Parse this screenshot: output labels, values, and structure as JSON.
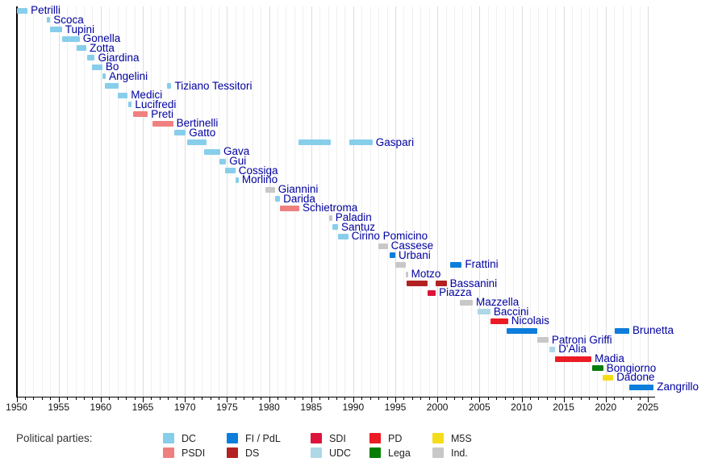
{
  "chart_data": {
    "type": "timeline",
    "description": "Gantt-style timeline of ministers, colored by political party",
    "x_axis": {
      "min": 1950,
      "max": 2025,
      "major_tick_step": 5,
      "minor_tick_step": 1,
      "tick_labels": [
        "1950",
        "1955",
        "1960",
        "1965",
        "1970",
        "1975",
        "1980",
        "1985",
        "1990",
        "1995",
        "2000",
        "2005",
        "2010",
        "2015",
        "2020",
        "2025"
      ],
      "grid": true
    },
    "party_colors": {
      "DC": "#87ceeb",
      "PSDI": "#f08080",
      "FI / PdL": "#0d7edb",
      "DS": "#b22222",
      "SDI": "#dc143c",
      "UDC": "#aed8e6",
      "PD": "#ec1b24",
      "Lega": "#067e06",
      "M5S": "#f5dc1a",
      "Ind.": "#c8c8c8"
    },
    "ministers": [
      {
        "name": "Petrilli",
        "terms": [
          {
            "start": 1950.0,
            "end": 1951.3,
            "party": "DC"
          }
        ]
      },
      {
        "name": "Scoca",
        "terms": [
          {
            "start": 1953.6,
            "end": 1954.0,
            "party": "DC"
          }
        ]
      },
      {
        "name": "Tupini",
        "terms": [
          {
            "start": 1954.0,
            "end": 1955.4,
            "party": "DC"
          }
        ]
      },
      {
        "name": "Gonella",
        "terms": [
          {
            "start": 1955.4,
            "end": 1957.5,
            "party": "DC"
          }
        ]
      },
      {
        "name": "Zotta",
        "terms": [
          {
            "start": 1957.1,
            "end": 1958.3,
            "party": "DC"
          }
        ]
      },
      {
        "name": "Giardina",
        "terms": [
          {
            "start": 1958.4,
            "end": 1959.3,
            "party": "DC"
          }
        ]
      },
      {
        "name": "Bo",
        "terms": [
          {
            "start": 1959.0,
            "end": 1960.2,
            "party": "DC"
          }
        ]
      },
      {
        "name": "Angelini",
        "terms": [
          {
            "start": 1960.2,
            "end": 1960.6,
            "party": "DC"
          }
        ]
      },
      {
        "name": "Tiziano Tessitori",
        "terms": [
          {
            "start": 1960.5,
            "end": 1962.1,
            "party": "DC"
          },
          {
            "start": 1967.9,
            "end": 1968.4,
            "party": "DC"
          }
        ]
      },
      {
        "name": "Medici",
        "terms": [
          {
            "start": 1962.0,
            "end": 1963.2,
            "party": "DC"
          }
        ]
      },
      {
        "name": "Lucifredi",
        "terms": [
          {
            "start": 1963.3,
            "end": 1963.7,
            "party": "DC"
          }
        ]
      },
      {
        "name": "Preti",
        "terms": [
          {
            "start": 1963.8,
            "end": 1965.6,
            "party": "PSDI"
          }
        ]
      },
      {
        "name": "Bertinelli",
        "terms": [
          {
            "start": 1966.1,
            "end": 1968.6,
            "party": "PSDI"
          }
        ]
      },
      {
        "name": "Gatto",
        "terms": [
          {
            "start": 1968.7,
            "end": 1970.1,
            "party": "DC"
          }
        ]
      },
      {
        "name": "Gaspari",
        "terms": [
          {
            "start": 1970.3,
            "end": 1972.6,
            "party": "DC"
          },
          {
            "start": 1983.5,
            "end": 1987.3,
            "party": "DC"
          },
          {
            "start": 1989.5,
            "end": 1992.3,
            "party": "DC"
          }
        ]
      },
      {
        "name": "Gava",
        "terms": [
          {
            "start": 1972.3,
            "end": 1974.2,
            "party": "DC"
          }
        ]
      },
      {
        "name": "Gui",
        "terms": [
          {
            "start": 1974.1,
            "end": 1974.9,
            "party": "DC"
          }
        ]
      },
      {
        "name": "Cossiga",
        "terms": [
          {
            "start": 1974.8,
            "end": 1976.0,
            "party": "DC"
          }
        ]
      },
      {
        "name": "Morlino",
        "terms": [
          {
            "start": 1976.0,
            "end": 1976.4,
            "party": "DC"
          }
        ]
      },
      {
        "name": "Giannini",
        "terms": [
          {
            "start": 1979.6,
            "end": 1980.7,
            "party": "Ind."
          }
        ]
      },
      {
        "name": "Darida",
        "terms": [
          {
            "start": 1980.7,
            "end": 1981.3,
            "party": "DC"
          }
        ]
      },
      {
        "name": "Schietroma",
        "terms": [
          {
            "start": 1981.3,
            "end": 1983.6,
            "party": "PSDI"
          }
        ]
      },
      {
        "name": "Paladin",
        "terms": [
          {
            "start": 1987.1,
            "end": 1987.5,
            "party": "Ind."
          }
        ]
      },
      {
        "name": "Santuz",
        "terms": [
          {
            "start": 1987.5,
            "end": 1988.2,
            "party": "DC"
          }
        ]
      },
      {
        "name": "Cirino Pomicino",
        "terms": [
          {
            "start": 1988.2,
            "end": 1989.4,
            "party": "DC"
          }
        ]
      },
      {
        "name": "Cassese",
        "terms": [
          {
            "start": 1993.0,
            "end": 1994.1,
            "party": "Ind."
          }
        ]
      },
      {
        "name": "Urbani",
        "terms": [
          {
            "start": 1994.3,
            "end": 1995.0,
            "party": "FI / PdL"
          }
        ]
      },
      {
        "name": "Frattini",
        "terms": [
          {
            "start": 1995.0,
            "end": 1996.2,
            "party": "Ind."
          },
          {
            "start": 2001.5,
            "end": 2002.9,
            "party": "FI / PdL"
          }
        ]
      },
      {
        "name": "Motzo",
        "terms": [
          {
            "start": 1996.2,
            "end": 1996.5,
            "party": "Ind."
          }
        ]
      },
      {
        "name": "Bassanini",
        "terms": [
          {
            "start": 1996.3,
            "end": 1998.8,
            "party": "DS"
          },
          {
            "start": 1999.8,
            "end": 2001.1,
            "party": "DS"
          }
        ]
      },
      {
        "name": "Piazza",
        "terms": [
          {
            "start": 1998.8,
            "end": 1999.8,
            "party": "SDI"
          }
        ]
      },
      {
        "name": "Mazzella",
        "terms": [
          {
            "start": 2002.7,
            "end": 2004.2,
            "party": "Ind."
          }
        ]
      },
      {
        "name": "Baccini",
        "terms": [
          {
            "start": 2004.8,
            "end": 2006.3,
            "party": "UDC"
          }
        ]
      },
      {
        "name": "Nicolais",
        "terms": [
          {
            "start": 2006.3,
            "end": 2008.4,
            "party": "PD"
          }
        ]
      },
      {
        "name": "Brunetta",
        "terms": [
          {
            "start": 2008.2,
            "end": 2011.9,
            "party": "FI / PdL"
          },
          {
            "start": 2021.1,
            "end": 2022.8,
            "party": "FI / PdL"
          }
        ]
      },
      {
        "name": "Patroni Griffi",
        "terms": [
          {
            "start": 2011.9,
            "end": 2013.2,
            "party": "Ind."
          }
        ]
      },
      {
        "name": "D'Alia",
        "terms": [
          {
            "start": 2013.3,
            "end": 2014.0,
            "party": "UDC"
          }
        ]
      },
      {
        "name": "Madia",
        "terms": [
          {
            "start": 2014.0,
            "end": 2018.3,
            "party": "PD"
          }
        ]
      },
      {
        "name": "Bongiorno",
        "terms": [
          {
            "start": 2018.4,
            "end": 2019.7,
            "party": "Lega"
          }
        ]
      },
      {
        "name": "Dadone",
        "terms": [
          {
            "start": 2019.6,
            "end": 2020.9,
            "party": "M5S"
          }
        ]
      },
      {
        "name": "Zangrillo",
        "terms": [
          {
            "start": 2022.8,
            "end": 2025.7,
            "party": "FI / PdL"
          }
        ]
      }
    ]
  },
  "legend": {
    "title": "Political parties:",
    "columns": [
      [
        {
          "label": "DC",
          "party": "DC"
        },
        {
          "label": "PSDI",
          "party": "PSDI"
        }
      ],
      [
        {
          "label": "FI / PdL",
          "party": "FI / PdL"
        },
        {
          "label": "DS",
          "party": "DS"
        }
      ],
      [
        {
          "label": "SDI",
          "party": "SDI"
        },
        {
          "label": "UDC",
          "party": "UDC"
        }
      ],
      [
        {
          "label": "PD",
          "party": "PD"
        },
        {
          "label": "Lega",
          "party": "Lega"
        }
      ],
      [
        {
          "label": "M5S",
          "party": "M5S"
        },
        {
          "label": "Ind.",
          "party": "Ind."
        }
      ]
    ]
  }
}
